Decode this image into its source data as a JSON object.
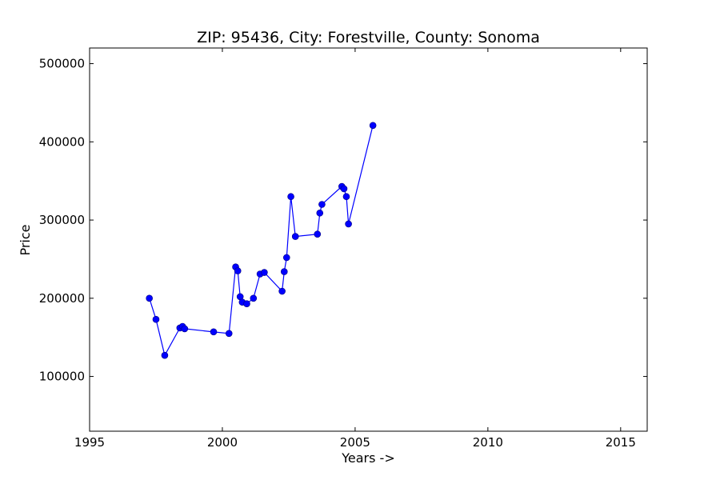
{
  "chart_data": {
    "type": "line",
    "title": "ZIP: 95436, City: Forestville, County: Sonoma",
    "xlabel": "Years ->",
    "ylabel": "Price",
    "xlim": [
      1995,
      2016
    ],
    "ylim": [
      30000,
      520000
    ],
    "xticks": [
      1995,
      2000,
      2005,
      2010,
      2015
    ],
    "yticks": [
      100000,
      200000,
      300000,
      400000,
      500000
    ],
    "grid": false,
    "series": [
      {
        "color": "#0000ff",
        "marker": "circle",
        "points": [
          {
            "x": 1997.25,
            "y": 200000
          },
          {
            "x": 1997.5,
            "y": 173000
          },
          {
            "x": 1997.83,
            "y": 127000
          },
          {
            "x": 1998.4,
            "y": 162000
          },
          {
            "x": 1998.5,
            "y": 164000
          },
          {
            "x": 1998.58,
            "y": 161000
          },
          {
            "x": 1999.67,
            "y": 157000
          },
          {
            "x": 2000.25,
            "y": 155000
          },
          {
            "x": 2000.5,
            "y": 240000
          },
          {
            "x": 2000.58,
            "y": 235000
          },
          {
            "x": 2000.67,
            "y": 202000
          },
          {
            "x": 2000.75,
            "y": 195000
          },
          {
            "x": 2000.92,
            "y": 193000
          },
          {
            "x": 2001.17,
            "y": 200000
          },
          {
            "x": 2001.42,
            "y": 231000
          },
          {
            "x": 2001.58,
            "y": 233000
          },
          {
            "x": 2002.25,
            "y": 209000
          },
          {
            "x": 2002.33,
            "y": 234000
          },
          {
            "x": 2002.42,
            "y": 252000
          },
          {
            "x": 2002.58,
            "y": 330000
          },
          {
            "x": 2002.75,
            "y": 279000
          },
          {
            "x": 2003.58,
            "y": 282000
          },
          {
            "x": 2003.67,
            "y": 309000
          },
          {
            "x": 2003.75,
            "y": 320000
          },
          {
            "x": 2004.5,
            "y": 343000
          },
          {
            "x": 2004.58,
            "y": 340000
          },
          {
            "x": 2004.67,
            "y": 330000
          },
          {
            "x": 2004.75,
            "y": 295000
          },
          {
            "x": 2005.67,
            "y": 421000
          }
        ]
      }
    ]
  }
}
